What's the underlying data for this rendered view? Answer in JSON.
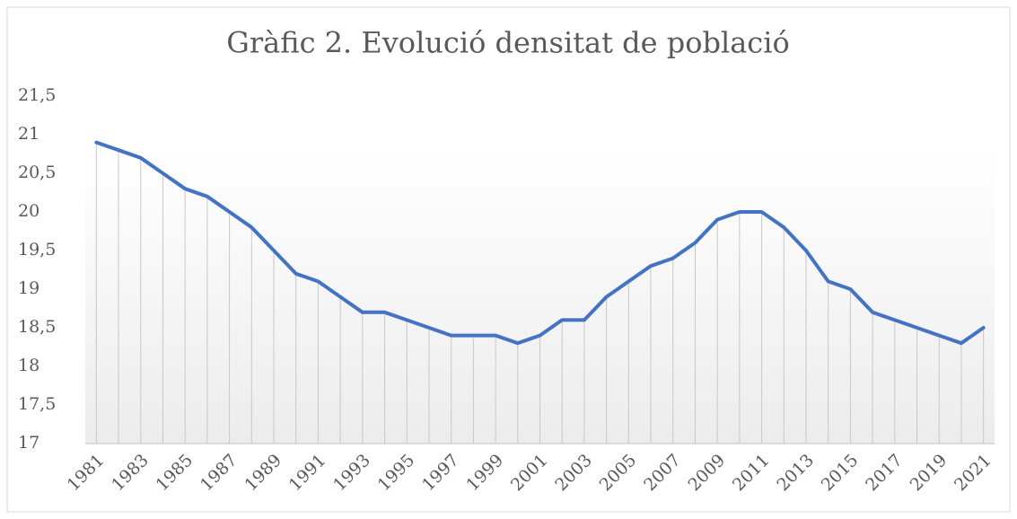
{
  "chart_data": {
    "type": "line",
    "title": "Gràfic 2. Evolució densitat de població",
    "categories": [
      "1981",
      null,
      "1983",
      null,
      "1985",
      null,
      "1987",
      null,
      "1989",
      null,
      "1991",
      null,
      "1993",
      null,
      "1995",
      null,
      "1997",
      null,
      "1999",
      null,
      "2001",
      null,
      "2003",
      null,
      "2005",
      null,
      "2007",
      null,
      "2009",
      null,
      "2011",
      null,
      "2013",
      null,
      "2015",
      null,
      "2017",
      null,
      "2019",
      null,
      "2021"
    ],
    "series": [
      {
        "color": "#4472c4",
        "values": [
          20.9,
          20.8,
          20.7,
          20.5,
          20.3,
          20.2,
          20.0,
          19.8,
          19.5,
          19.2,
          19.1,
          18.9,
          18.7,
          18.7,
          18.6,
          18.5,
          18.4,
          18.4,
          18.4,
          18.3,
          18.4,
          18.6,
          18.6,
          18.9,
          19.1,
          19.3,
          19.4,
          19.6,
          19.9,
          20.0,
          20.0,
          19.8,
          19.5,
          19.1,
          19.0,
          18.7,
          18.6,
          18.5,
          18.4,
          18.3,
          18.5
        ]
      }
    ],
    "ylim": [
      17,
      21.5
    ],
    "yticks": [
      17,
      {
        "value": 17.5,
        "label": "17,5"
      },
      18,
      {
        "value": 18.5,
        "label": "18,5"
      },
      19,
      {
        "value": 19.5,
        "label": "19,5"
      },
      20,
      {
        "value": 20.5,
        "label": "20,5"
      },
      21,
      {
        "value": 21.5,
        "label": "21,5"
      }
    ],
    "drop_lines": true
  }
}
